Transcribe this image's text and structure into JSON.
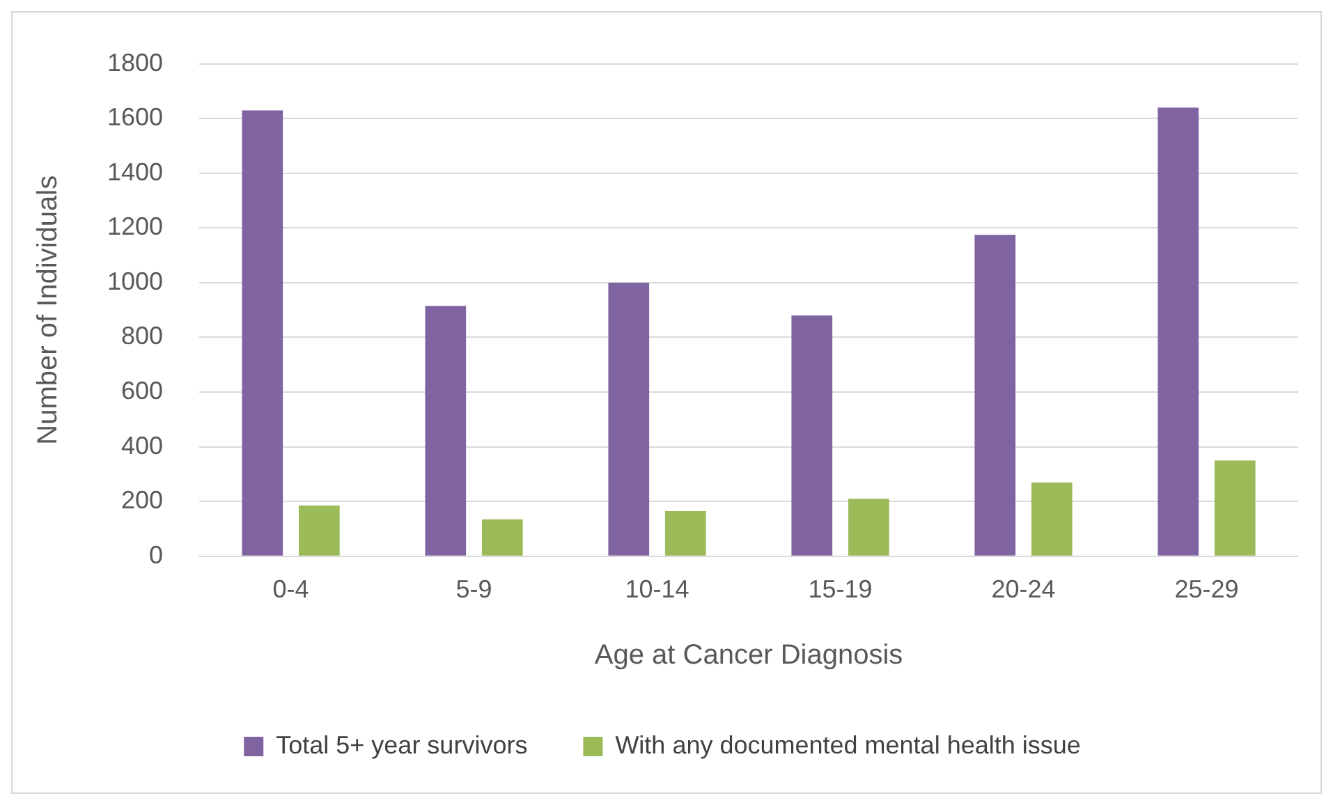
{
  "chart_data": {
    "type": "bar",
    "xlabel": "Age at Cancer Diagnosis",
    "ylabel": "Number of Individuals",
    "categories": [
      "0-4",
      "5-9",
      "10-14",
      "15-19",
      "20-24",
      "25-29"
    ],
    "series": [
      {
        "name": "Total 5+ year survivors",
        "color": "#8064a2",
        "values": [
          1630,
          915,
          1000,
          880,
          1175,
          1640
        ]
      },
      {
        "name": "With any documented mental health issue",
        "color": "#9bbb59",
        "values": [
          185,
          135,
          165,
          210,
          270,
          350
        ]
      }
    ],
    "ylim": [
      0,
      1800
    ],
    "yticks": [
      0,
      200,
      400,
      600,
      800,
      1000,
      1200,
      1400,
      1600,
      1800
    ],
    "grid": "y",
    "legend": "bottom"
  }
}
